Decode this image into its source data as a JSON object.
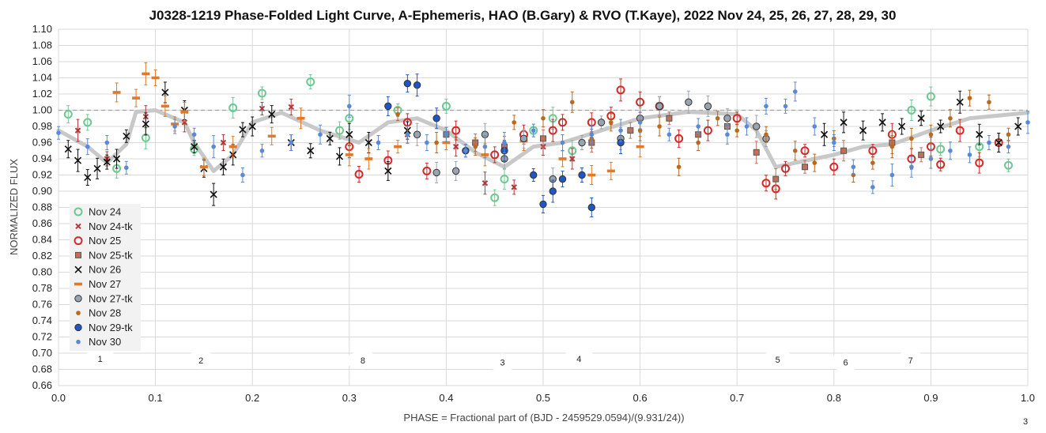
{
  "chart_data": {
    "type": "scatter",
    "title": "J0328-1219 Phase-Folded Light Curve, A-Ephemeris, HAO (B.Gary) & RVO (T.Kaye), 2022 Nov 24, 25, 26, 27, 28, 29, 30",
    "xlabel": "PHASE = Fractional part of (BJD - 2459529.0594)/(9.931/24))",
    "ylabel": "NORMALIZED FLUX",
    "xlim": [
      0.0,
      1.0
    ],
    "ylim": [
      0.66,
      1.1
    ],
    "x_ticks": [
      "0.0",
      "0.1",
      "0.2",
      "0.3",
      "0.4",
      "0.5",
      "0.6",
      "0.7",
      "0.8",
      "0.9",
      "1.0"
    ],
    "y_ticks": [
      "0.66",
      "0.68",
      "0.70",
      "0.72",
      "0.74",
      "0.76",
      "0.78",
      "0.80",
      "0.82",
      "0.84",
      "0.86",
      "0.88",
      "0.90",
      "0.92",
      "0.94",
      "0.96",
      "0.98",
      "1.00",
      "1.02",
      "1.04",
      "1.06",
      "1.08",
      "1.10"
    ],
    "grid": true,
    "legend_position": "left",
    "reference_line": 1.0,
    "series": [
      {
        "name": "Nov 24",
        "marker": "open-circle",
        "color": "#6cc990",
        "points": [
          [
            0.01,
            0.995
          ],
          [
            0.03,
            0.985
          ],
          [
            0.06,
            0.928
          ],
          [
            0.09,
            0.966
          ],
          [
            0.14,
            0.952
          ],
          [
            0.18,
            1.003
          ],
          [
            0.21,
            1.021
          ],
          [
            0.26,
            1.035
          ],
          [
            0.29,
            0.975
          ],
          [
            0.3,
            0.99
          ],
          [
            0.35,
            1.0
          ],
          [
            0.4,
            1.005
          ],
          [
            0.45,
            0.892
          ],
          [
            0.46,
            0.915
          ],
          [
            0.49,
            0.975
          ],
          [
            0.51,
            0.99
          ],
          [
            0.53,
            0.95
          ],
          [
            0.88,
            1.0
          ],
          [
            0.9,
            1.017
          ],
          [
            0.91,
            0.952
          ],
          [
            0.95,
            0.955
          ],
          [
            0.98,
            0.932
          ]
        ]
      },
      {
        "name": "Nov 24-tk",
        "marker": "x-small",
        "color": "#b23a3a",
        "points": [
          [
            0.02,
            0.975
          ],
          [
            0.05,
            0.94
          ],
          [
            0.09,
            0.992
          ],
          [
            0.13,
            0.985
          ],
          [
            0.17,
            0.96
          ],
          [
            0.21,
            1.002
          ],
          [
            0.24,
            1.004
          ],
          [
            0.36,
            0.97
          ],
          [
            0.41,
            0.955
          ],
          [
            0.44,
            0.91
          ],
          [
            0.47,
            0.905
          ],
          [
            0.5,
            0.955
          ],
          [
            0.53,
            0.94
          ]
        ]
      },
      {
        "name": "Nov 25",
        "marker": "open-circle",
        "color": "#d62828",
        "points": [
          [
            0.3,
            0.955
          ],
          [
            0.31,
            0.921
          ],
          [
            0.34,
            0.938
          ],
          [
            0.36,
            0.985
          ],
          [
            0.38,
            0.925
          ],
          [
            0.41,
            0.975
          ],
          [
            0.45,
            0.945
          ],
          [
            0.48,
            0.97
          ],
          [
            0.51,
            0.975
          ],
          [
            0.52,
            0.985
          ],
          [
            0.55,
            0.985
          ],
          [
            0.57,
            0.993
          ],
          [
            0.58,
            1.025
          ],
          [
            0.6,
            1.01
          ],
          [
            0.62,
            1.005
          ],
          [
            0.64,
            0.965
          ],
          [
            0.67,
            0.975
          ],
          [
            0.7,
            0.99
          ],
          [
            0.73,
            0.91
          ],
          [
            0.74,
            0.903
          ],
          [
            0.75,
            0.928
          ],
          [
            0.77,
            0.95
          ],
          [
            0.8,
            0.93
          ],
          [
            0.84,
            0.95
          ],
          [
            0.86,
            0.97
          ],
          [
            0.88,
            0.94
          ],
          [
            0.9,
            0.955
          ],
          [
            0.91,
            0.933
          ],
          [
            0.93,
            0.975
          ],
          [
            0.95,
            0.935
          ],
          [
            0.97,
            0.96
          ]
        ]
      },
      {
        "name": "Nov 25-tk",
        "marker": "square",
        "color": "#c0705a",
        "points": [
          [
            0.4,
            0.97
          ],
          [
            0.43,
            0.96
          ],
          [
            0.46,
            0.955
          ],
          [
            0.5,
            0.965
          ],
          [
            0.55,
            0.96
          ],
          [
            0.59,
            0.975
          ],
          [
            0.63,
            0.99
          ],
          [
            0.66,
            0.97
          ],
          [
            0.69,
            0.98
          ],
          [
            0.72,
            0.948
          ],
          [
            0.74,
            0.915
          ],
          [
            0.77,
            0.93
          ],
          [
            0.81,
            0.95
          ],
          [
            0.86,
            0.96
          ],
          [
            0.89,
            0.945
          ]
        ]
      },
      {
        "name": "Nov 26",
        "marker": "x",
        "color": "#111111",
        "points": [
          [
            0.01,
            0.952
          ],
          [
            0.02,
            0.938
          ],
          [
            0.03,
            0.917
          ],
          [
            0.04,
            0.928
          ],
          [
            0.05,
            0.936
          ],
          [
            0.06,
            0.94
          ],
          [
            0.07,
            0.968
          ],
          [
            0.09,
            0.983
          ],
          [
            0.11,
            1.022
          ],
          [
            0.13,
            1.0
          ],
          [
            0.14,
            0.955
          ],
          [
            0.15,
            0.928
          ],
          [
            0.16,
            0.896
          ],
          [
            0.17,
            0.93
          ],
          [
            0.18,
            0.945
          ],
          [
            0.19,
            0.976
          ],
          [
            0.2,
            0.98
          ],
          [
            0.22,
            0.995
          ],
          [
            0.24,
            0.96
          ],
          [
            0.26,
            0.95
          ],
          [
            0.28,
            0.965
          ],
          [
            0.29,
            0.943
          ],
          [
            0.3,
            0.97
          ],
          [
            0.32,
            0.96
          ],
          [
            0.34,
            0.925
          ],
          [
            0.36,
            0.975
          ],
          [
            0.79,
            0.97
          ],
          [
            0.81,
            0.985
          ],
          [
            0.83,
            0.975
          ],
          [
            0.85,
            0.985
          ],
          [
            0.87,
            0.98
          ],
          [
            0.89,
            0.99
          ],
          [
            0.91,
            0.98
          ],
          [
            0.93,
            1.01
          ],
          [
            0.95,
            0.97
          ],
          [
            0.97,
            0.96
          ],
          [
            0.99,
            0.98
          ]
        ]
      },
      {
        "name": "Nov 27",
        "marker": "dash",
        "color": "#e07a2a",
        "points": [
          [
            0.06,
            1.022
          ],
          [
            0.08,
            1.015
          ],
          [
            0.09,
            1.045
          ],
          [
            0.1,
            1.04
          ],
          [
            0.11,
            1.005
          ],
          [
            0.12,
            0.983
          ],
          [
            0.13,
            0.998
          ],
          [
            0.15,
            0.93
          ],
          [
            0.18,
            0.955
          ],
          [
            0.22,
            0.968
          ],
          [
            0.25,
            0.99
          ],
          [
            0.3,
            0.945
          ],
          [
            0.32,
            0.94
          ],
          [
            0.35,
            0.955
          ],
          [
            0.4,
            0.96
          ],
          [
            0.44,
            0.945
          ],
          [
            0.48,
            0.962
          ],
          [
            0.52,
            0.94
          ],
          [
            0.55,
            0.92
          ],
          [
            0.57,
            0.925
          ],
          [
            0.6,
            0.955
          ]
        ]
      },
      {
        "name": "Nov 27-tk",
        "marker": "filled-circle",
        "color": "#9aa3b0",
        "points": [
          [
            0.37,
            0.97
          ],
          [
            0.39,
            0.923
          ],
          [
            0.41,
            0.925
          ],
          [
            0.44,
            0.97
          ],
          [
            0.46,
            0.94
          ],
          [
            0.48,
            0.965
          ],
          [
            0.51,
            0.915
          ],
          [
            0.54,
            0.96
          ],
          [
            0.56,
            0.985
          ],
          [
            0.58,
            0.965
          ],
          [
            0.6,
            0.99
          ],
          [
            0.62,
            1.005
          ],
          [
            0.65,
            1.01
          ],
          [
            0.67,
            1.005
          ],
          [
            0.69,
            0.99
          ],
          [
            0.72,
            0.98
          ],
          [
            0.73,
            0.965
          ]
        ]
      },
      {
        "name": "Nov 28",
        "marker": "small-circle",
        "color": "#b86a20",
        "points": [
          [
            0.35,
            0.995
          ],
          [
            0.39,
            0.96
          ],
          [
            0.43,
            0.955
          ],
          [
            0.47,
            0.985
          ],
          [
            0.5,
            0.99
          ],
          [
            0.53,
            1.01
          ],
          [
            0.55,
            0.965
          ],
          [
            0.57,
            0.985
          ],
          [
            0.6,
            0.975
          ],
          [
            0.62,
            0.98
          ],
          [
            0.64,
            0.93
          ],
          [
            0.66,
            0.96
          ],
          [
            0.68,
            0.99
          ],
          [
            0.7,
            0.975
          ],
          [
            0.73,
            0.97
          ],
          [
            0.76,
            0.95
          ],
          [
            0.78,
            0.935
          ],
          [
            0.8,
            0.965
          ],
          [
            0.82,
            0.92
          ],
          [
            0.84,
            0.935
          ],
          [
            0.86,
            0.955
          ],
          [
            0.88,
            0.965
          ],
          [
            0.9,
            0.97
          ],
          [
            0.92,
            0.99
          ],
          [
            0.94,
            1.015
          ],
          [
            0.96,
            1.01
          ],
          [
            0.98,
            0.97
          ]
        ]
      },
      {
        "name": "Nov 29-tk",
        "marker": "filled-circle",
        "color": "#2255c4",
        "points": [
          [
            0.34,
            1.005
          ],
          [
            0.36,
            1.033
          ],
          [
            0.37,
            1.031
          ],
          [
            0.39,
            0.99
          ],
          [
            0.42,
            0.95
          ],
          [
            0.46,
            0.95
          ],
          [
            0.49,
            0.92
          ],
          [
            0.5,
            0.884
          ],
          [
            0.51,
            0.9
          ],
          [
            0.52,
            0.915
          ],
          [
            0.54,
            0.92
          ],
          [
            0.55,
            0.88
          ],
          [
            0.58,
            0.96
          ]
        ]
      },
      {
        "name": "Nov 30",
        "marker": "small-circle",
        "color": "#5a8ad6",
        "points": [
          [
            0.0,
            0.972
          ],
          [
            0.03,
            0.955
          ],
          [
            0.05,
            0.96
          ],
          [
            0.07,
            0.929
          ],
          [
            0.12,
            0.98
          ],
          [
            0.14,
            0.97
          ],
          [
            0.16,
            0.955
          ],
          [
            0.19,
            0.92
          ],
          [
            0.21,
            0.95
          ],
          [
            0.24,
            0.96
          ],
          [
            0.27,
            0.97
          ],
          [
            0.3,
            1.005
          ],
          [
            0.33,
            0.96
          ],
          [
            0.36,
            0.97
          ],
          [
            0.38,
            0.96
          ],
          [
            0.4,
            0.97
          ],
          [
            0.42,
            0.95
          ],
          [
            0.44,
            0.955
          ],
          [
            0.46,
            0.96
          ],
          [
            0.49,
            0.975
          ],
          [
            0.52,
            0.96
          ],
          [
            0.55,
            0.97
          ],
          [
            0.58,
            0.975
          ],
          [
            0.6,
            0.985
          ],
          [
            0.63,
            0.97
          ],
          [
            0.66,
            0.98
          ],
          [
            0.69,
            0.97
          ],
          [
            0.71,
            0.98
          ],
          [
            0.73,
            1.005
          ],
          [
            0.75,
            1.005
          ],
          [
            0.76,
            1.023
          ],
          [
            0.78,
            0.98
          ],
          [
            0.8,
            0.96
          ],
          [
            0.82,
            0.93
          ],
          [
            0.84,
            0.905
          ],
          [
            0.86,
            0.92
          ],
          [
            0.88,
            0.93
          ],
          [
            0.9,
            0.94
          ],
          [
            0.92,
            0.95
          ],
          [
            0.94,
            0.945
          ],
          [
            0.96,
            0.96
          ],
          [
            0.98,
            0.955
          ],
          [
            1.0,
            0.985
          ]
        ]
      }
    ],
    "model_curve": [
      [
        0.0,
        0.975
      ],
      [
        0.03,
        0.955
      ],
      [
        0.05,
        0.935
      ],
      [
        0.07,
        0.958
      ],
      [
        0.08,
        0.998
      ],
      [
        0.1,
        1.0
      ],
      [
        0.13,
        0.985
      ],
      [
        0.14,
        0.96
      ],
      [
        0.16,
        0.925
      ],
      [
        0.18,
        0.945
      ],
      [
        0.2,
        0.985
      ],
      [
        0.23,
        0.997
      ],
      [
        0.27,
        0.975
      ],
      [
        0.31,
        0.96
      ],
      [
        0.34,
        0.985
      ],
      [
        0.37,
        0.99
      ],
      [
        0.4,
        0.975
      ],
      [
        0.43,
        0.948
      ],
      [
        0.46,
        0.93
      ],
      [
        0.49,
        0.955
      ],
      [
        0.52,
        0.96
      ],
      [
        0.56,
        0.975
      ],
      [
        0.6,
        0.99
      ],
      [
        0.65,
        0.998
      ],
      [
        0.7,
        0.995
      ],
      [
        0.72,
        0.975
      ],
      [
        0.74,
        0.93
      ],
      [
        0.76,
        0.935
      ],
      [
        0.8,
        0.945
      ],
      [
        0.83,
        0.955
      ],
      [
        0.86,
        0.958
      ],
      [
        0.9,
        0.975
      ],
      [
        0.94,
        0.99
      ],
      [
        1.0,
        0.997
      ]
    ],
    "annotations": [
      {
        "text": "1",
        "x": 0.043,
        "y": 0.693
      },
      {
        "text": "2",
        "x": 0.147,
        "y": 0.691
      },
      {
        "text": "8",
        "x": 0.314,
        "y": 0.691
      },
      {
        "text": "3",
        "x": 0.458,
        "y": 0.689
      },
      {
        "text": "4",
        "x": 0.537,
        "y": 0.693
      },
      {
        "text": "5",
        "x": 0.742,
        "y": 0.692
      },
      {
        "text": "6",
        "x": 0.812,
        "y": 0.689
      },
      {
        "text": "7",
        "x": 0.879,
        "y": 0.691
      }
    ],
    "corner_note": "3"
  }
}
